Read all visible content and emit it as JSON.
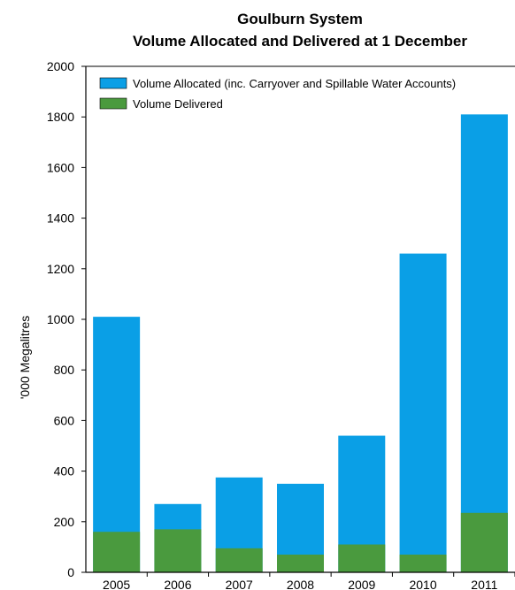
{
  "chart_data": {
    "type": "bar",
    "stacked": "overlay",
    "title": [
      "Goulburn System",
      "Volume Allocated and Delivered at 1 December"
    ],
    "ylabel": "'000 Megalitres",
    "xlabel": "",
    "ylim": [
      0,
      2000
    ],
    "yticks": [
      0,
      200,
      400,
      600,
      800,
      1000,
      1200,
      1400,
      1600,
      1800,
      2000
    ],
    "categories": [
      "2005",
      "2006",
      "2007",
      "2008",
      "2009",
      "2010",
      "2011"
    ],
    "series": [
      {
        "name": "Volume Allocated (inc. Carryover and Spillable Water Accounts)",
        "color": "#0a9fe6",
        "values": [
          1010,
          270,
          375,
          350,
          540,
          1260,
          1810
        ]
      },
      {
        "name": "Volume Delivered",
        "color": "#4a9a3e",
        "values": [
          160,
          170,
          95,
          70,
          110,
          70,
          235
        ]
      }
    ],
    "grid": false,
    "legend_position": "top-left"
  }
}
